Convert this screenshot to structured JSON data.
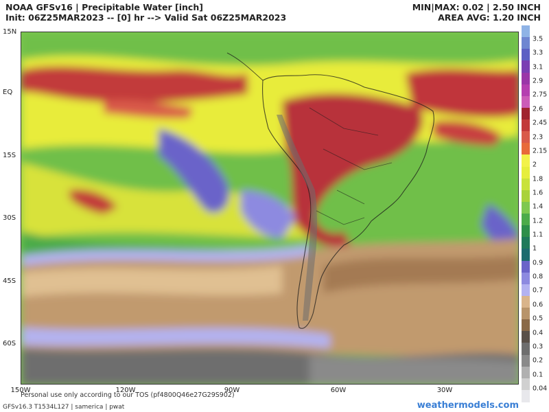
{
  "header": {
    "title_line": "NOAA GFSv16 | Precipitable Water [inch]",
    "init_line": "Init: 06Z25MAR2023 -- [0] hr --> Valid Sat 06Z25MAR2023",
    "minmax_line": "MIN|MAX: 0.02 | 2.50 INCH",
    "area_avg_line": "AREA AVG: 1.20 INCH"
  },
  "axes": {
    "lat_labels": [
      "15N",
      "EQ",
      "15S",
      "30S",
      "45S",
      "60S"
    ],
    "lon_labels": [
      "150W",
      "120W",
      "90W",
      "60W",
      "30W"
    ]
  },
  "footer": {
    "tos": "Personal use only according to our TOS (pf4800Q46e27G29S902)",
    "model_info": "GFSv16.3 T1534L127 | samerica | pwat",
    "website": "weathermodels.com"
  },
  "colorbar": {
    "labels": [
      "3.5",
      "3.3",
      "3.1",
      "2.9",
      "2.75",
      "2.6",
      "2.45",
      "2.3",
      "2.15",
      "2",
      "1.8",
      "1.6",
      "1.4",
      "1.2",
      "1.1",
      "1",
      "0.9",
      "0.8",
      "0.7",
      "0.6",
      "0.5",
      "0.4",
      "0.3",
      "0.2",
      "0.1",
      "0.04"
    ],
    "colors": [
      "#8fb3e6",
      "#6f86d1",
      "#5c60c4",
      "#7a3fb3",
      "#9a36a8",
      "#b53fb0",
      "#cc5cb8",
      "#a0232e",
      "#c23a3a",
      "#d95a4a",
      "#e86a3a",
      "#f2f24a",
      "#e6ee3c",
      "#c9e23a",
      "#a9d23a",
      "#7ec850",
      "#4cab4a",
      "#2d8f4a",
      "#1e7a5a",
      "#1c6b6e",
      "#6a64c9",
      "#8d8ae0",
      "#b3b2f0",
      "#d9b48a",
      "#b8946a",
      "#8a6a48",
      "#5a5048",
      "#6e6e6e",
      "#8a8a8a",
      "#b0b0b0",
      "#d0d0d0",
      "#e8e8ec"
    ]
  }
}
